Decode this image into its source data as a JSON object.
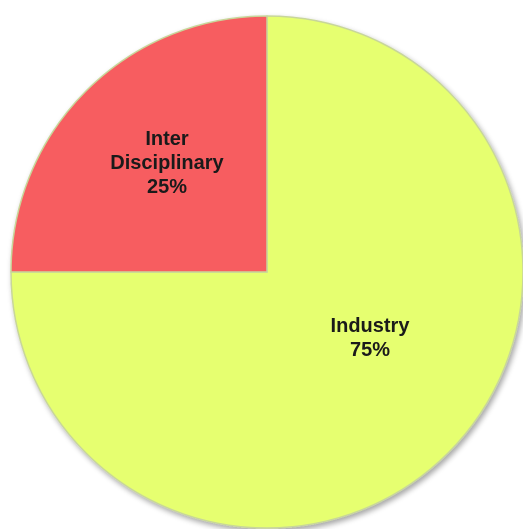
{
  "chart_data": {
    "type": "pie",
    "title": "",
    "slices": [
      {
        "label_lines": [
          "Industry",
          "75%"
        ],
        "category": "Industry",
        "value": 75,
        "color": "#e6ff70"
      },
      {
        "label_lines": [
          "Inter",
          "Disciplinary",
          "25%"
        ],
        "category": "Inter Disciplinary",
        "value": 25,
        "color": "#f75d60"
      }
    ],
    "legend": "none",
    "colors": {
      "slice_border": "#c8d69a"
    }
  }
}
